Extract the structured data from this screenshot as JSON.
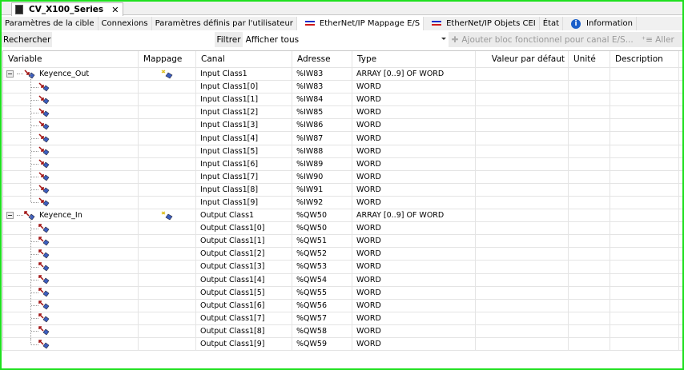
{
  "document_tab": {
    "title": "CV_X100_Series",
    "close": "✕"
  },
  "tabs": [
    {
      "label": "Paramètres de la cible",
      "icon": ""
    },
    {
      "label": "Connexions",
      "icon": ""
    },
    {
      "label": "Paramètres définis par l'utilisateur",
      "icon": ""
    },
    {
      "label": "EtherNet/IP Mappage E/S",
      "icon": "ethernet-ip-icon",
      "active": true
    },
    {
      "label": "EtherNet/IP Objets CEI",
      "icon": "ethernet-ip-icon"
    },
    {
      "label": "État",
      "icon": ""
    },
    {
      "label": "Information",
      "icon": "info-icon"
    }
  ],
  "toolbar": {
    "search_label": "Rechercher",
    "filter_label": "Filtrer",
    "filter_value": "Afficher tous",
    "add_fb_label": "Ajouter bloc fonctionnel pour canal E/S...",
    "goto_label": "Aller"
  },
  "columns": [
    "Variable",
    "Mappage",
    "Canal",
    "Adresse",
    "Type",
    "Valeur par défaut",
    "Unité",
    "Description"
  ],
  "groups": [
    {
      "variable": "Keyence_Out",
      "direction": "input",
      "canal": "Input Class1",
      "adresse": "%IW83",
      "type": "ARRAY [0..9] OF WORD",
      "children": [
        {
          "canal": "Input Class1[0]",
          "adresse": "%IW83",
          "type": "WORD"
        },
        {
          "canal": "Input Class1[1]",
          "adresse": "%IW84",
          "type": "WORD"
        },
        {
          "canal": "Input Class1[2]",
          "adresse": "%IW85",
          "type": "WORD"
        },
        {
          "canal": "Input Class1[3]",
          "adresse": "%IW86",
          "type": "WORD"
        },
        {
          "canal": "Input Class1[4]",
          "adresse": "%IW87",
          "type": "WORD"
        },
        {
          "canal": "Input Class1[5]",
          "adresse": "%IW88",
          "type": "WORD"
        },
        {
          "canal": "Input Class1[6]",
          "adresse": "%IW89",
          "type": "WORD"
        },
        {
          "canal": "Input Class1[7]",
          "adresse": "%IW90",
          "type": "WORD"
        },
        {
          "canal": "Input Class1[8]",
          "adresse": "%IW91",
          "type": "WORD"
        },
        {
          "canal": "Input Class1[9]",
          "adresse": "%IW92",
          "type": "WORD"
        }
      ]
    },
    {
      "variable": "Keyence_In",
      "direction": "output",
      "canal": "Output Class1",
      "adresse": "%QW50",
      "type": "ARRAY [0..9] OF WORD",
      "children": [
        {
          "canal": "Output Class1[0]",
          "adresse": "%QW50",
          "type": "WORD"
        },
        {
          "canal": "Output Class1[1]",
          "adresse": "%QW51",
          "type": "WORD"
        },
        {
          "canal": "Output Class1[2]",
          "adresse": "%QW52",
          "type": "WORD"
        },
        {
          "canal": "Output Class1[3]",
          "adresse": "%QW53",
          "type": "WORD"
        },
        {
          "canal": "Output Class1[4]",
          "adresse": "%QW54",
          "type": "WORD"
        },
        {
          "canal": "Output Class1[5]",
          "adresse": "%QW55",
          "type": "WORD"
        },
        {
          "canal": "Output Class1[6]",
          "adresse": "%QW56",
          "type": "WORD"
        },
        {
          "canal": "Output Class1[7]",
          "adresse": "%QW57",
          "type": "WORD"
        },
        {
          "canal": "Output Class1[8]",
          "adresse": "%QW58",
          "type": "WORD"
        },
        {
          "canal": "Output Class1[9]",
          "adresse": "%QW59",
          "type": "WORD"
        }
      ]
    }
  ]
}
